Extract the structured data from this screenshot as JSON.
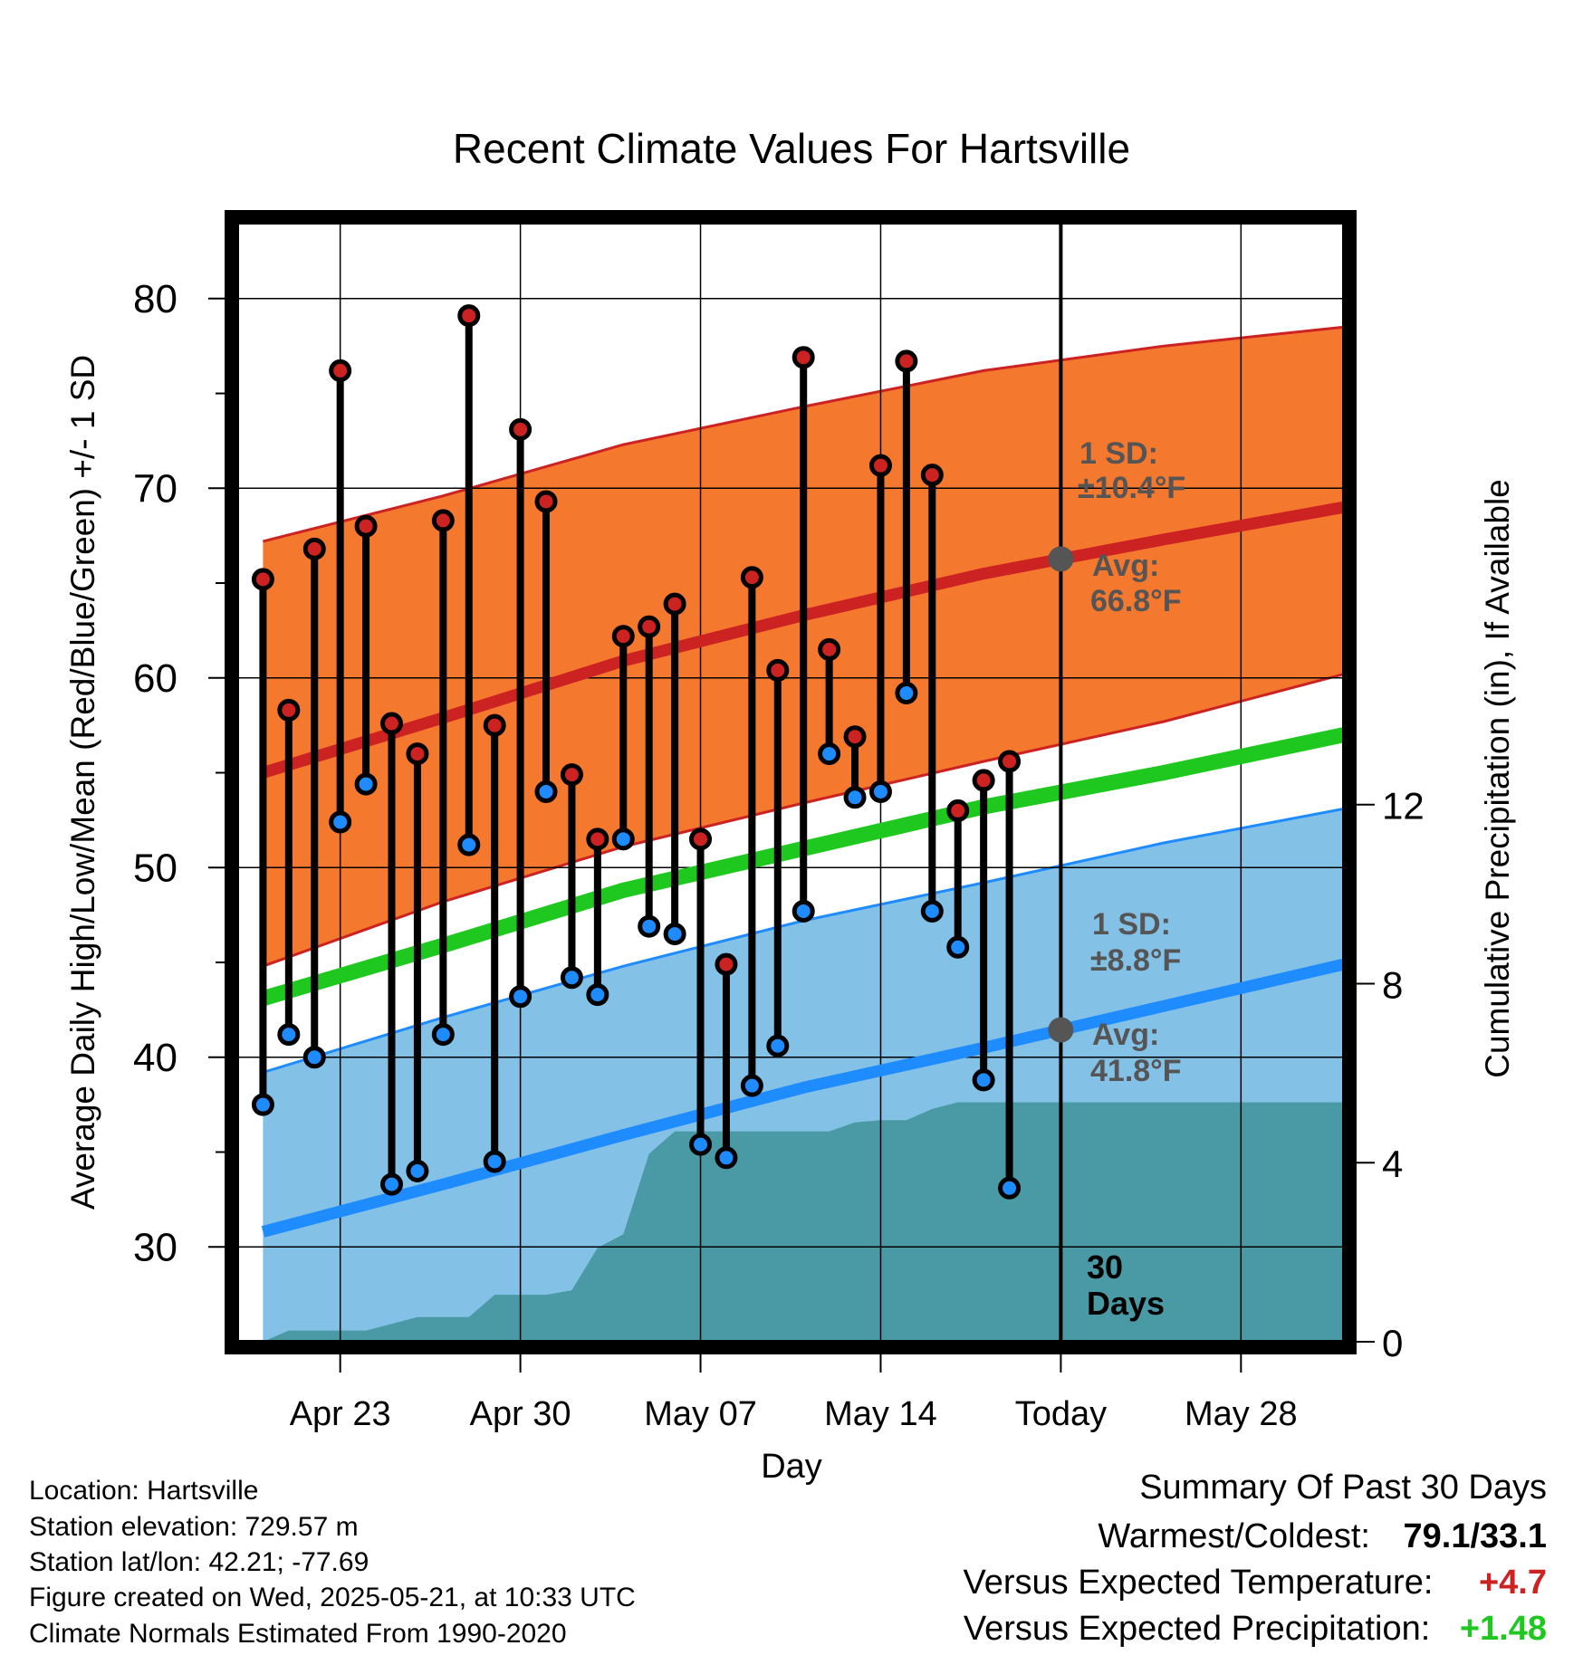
{
  "chart_data": {
    "type": "line",
    "title": "Recent Climate Values For Hartsville",
    "xlabel": "Day",
    "ylabel": "Average Daily High/Low/Mean (Red/Blue/Green) +/- 1 SD",
    "y2label": "Cumulative Precipitation (in), If Available",
    "x_range": [
      "2025-04-19",
      "2025-06-01"
    ],
    "ylim": [
      25,
      84
    ],
    "y2lim": [
      0,
      25
    ],
    "yticks": [
      30,
      40,
      50,
      60,
      70,
      80
    ],
    "y2ticks": [
      0,
      4,
      8,
      12
    ],
    "xticks": [
      {
        "date": "2025-04-23",
        "label": "Apr 23"
      },
      {
        "date": "2025-04-30",
        "label": "Apr 30"
      },
      {
        "date": "2025-05-07",
        "label": "May 07"
      },
      {
        "date": "2025-05-14",
        "label": "May 14"
      },
      {
        "date": "2025-05-21",
        "label": "Today"
      },
      {
        "date": "2025-05-28",
        "label": "May 28"
      }
    ],
    "grid": true,
    "today": "2025-05-21",
    "normals": {
      "dates": [
        "2025-04-20",
        "2025-04-27",
        "2025-05-04",
        "2025-05-11",
        "2025-05-18",
        "2025-05-25",
        "2025-06-01"
      ],
      "high_mean": [
        55.0,
        57.9,
        60.9,
        63.3,
        65.5,
        67.3,
        69.0
      ],
      "high_upper": [
        67.2,
        69.6,
        72.3,
        74.3,
        76.2,
        77.5,
        78.5
      ],
      "high_lower": [
        44.8,
        48.2,
        51.1,
        53.4,
        55.6,
        57.7,
        60.2
      ],
      "mean": [
        43.1,
        45.9,
        48.8,
        51.0,
        53.2,
        55.0,
        57.0
      ],
      "low_mean": [
        30.8,
        33.3,
        35.9,
        38.4,
        40.5,
        42.7,
        44.9
      ],
      "low_upper": [
        39.2,
        42.1,
        44.8,
        47.2,
        49.2,
        51.3,
        53.1
      ],
      "colors": {
        "high": "#cc2222",
        "high_band": "#f5782f",
        "mean": "#1ec81e",
        "low": "#1e8cff",
        "low_band": "#84c1e7",
        "precip": "#4a9aa5"
      }
    },
    "series": [
      {
        "name": "High",
        "color": "#cc2222",
        "values": [
          65.2,
          58.3,
          66.8,
          76.2,
          68.0,
          57.6,
          56.0,
          68.3,
          79.1,
          57.5,
          73.1,
          69.3,
          54.9,
          51.5,
          62.2,
          62.7,
          63.9,
          51.5,
          44.9,
          65.3,
          60.4,
          76.9,
          61.5,
          56.9,
          71.2,
          76.7,
          70.7,
          53.0,
          54.6,
          55.6
        ]
      },
      {
        "name": "Low",
        "color": "#1e8cff",
        "values": [
          37.5,
          41.2,
          40.0,
          52.4,
          54.4,
          33.3,
          34.0,
          41.2,
          51.2,
          34.5,
          43.2,
          54.0,
          44.2,
          43.3,
          51.5,
          46.9,
          46.5,
          35.4,
          34.7,
          38.5,
          40.6,
          47.7,
          56.0,
          53.7,
          54.0,
          59.2,
          47.7,
          45.8,
          38.8,
          33.1
        ]
      }
    ],
    "series_dates_start": "2025-04-20",
    "precipitation": {
      "dates": [
        "2025-04-20",
        "2025-04-21",
        "2025-04-22",
        "2025-04-23",
        "2025-04-24",
        "2025-04-25",
        "2025-04-26",
        "2025-04-27",
        "2025-04-28",
        "2025-04-29",
        "2025-04-30",
        "2025-05-01",
        "2025-05-02",
        "2025-05-03",
        "2025-05-04",
        "2025-05-05",
        "2025-05-06",
        "2025-05-07",
        "2025-05-08",
        "2025-05-09",
        "2025-05-10",
        "2025-05-11",
        "2025-05-12",
        "2025-05-13",
        "2025-05-14",
        "2025-05-15",
        "2025-05-16",
        "2025-05-17",
        "2025-05-18",
        "2025-05-19",
        "2025-05-20",
        "2025-06-01"
      ],
      "cumulative": [
        0.0,
        0.25,
        0.25,
        0.25,
        0.25,
        0.4,
        0.55,
        0.55,
        0.55,
        1.05,
        1.05,
        1.05,
        1.15,
        2.1,
        2.4,
        4.2,
        4.7,
        4.7,
        4.7,
        4.7,
        4.7,
        4.7,
        4.7,
        4.9,
        4.95,
        4.95,
        5.2,
        5.35,
        5.35,
        5.35,
        5.35,
        5.35
      ]
    },
    "annotations": [
      {
        "label": "1 SD:",
        "value": "±10.4°F",
        "series": "High"
      },
      {
        "label": "Avg:",
        "value": "66.8°F",
        "series": "High"
      },
      {
        "label": "1 SD:",
        "value": "±8.8°F",
        "series": "Low"
      },
      {
        "label": "Avg:",
        "value": "41.8°F",
        "series": "Low"
      },
      {
        "label": "30",
        "value": "Days"
      }
    ]
  },
  "station": {
    "location": "Location: Hartsville",
    "elevation": "Station elevation: 729.57 m",
    "latlon": "Station lat/lon: 42.21; -77.69",
    "created": "Figure created on Wed, 2025-05-21, at 10:33 UTC",
    "normals": "Climate Normals Estimated From 1990-2020"
  },
  "summary": {
    "title": "Summary Of Past 30 Days",
    "warmest_label": "Warmest/Coldest:",
    "warmest_value": "79.1/33.1",
    "temp_label": "Versus Expected Temperature:",
    "temp_value": "+4.7",
    "temp_color": "#cc2222",
    "precip_label": "Versus Expected Precipitation:",
    "precip_value": "+1.48",
    "precip_color": "#1ec81e"
  }
}
